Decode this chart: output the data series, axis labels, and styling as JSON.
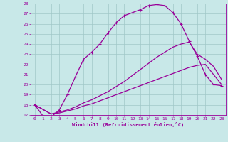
{
  "xlabel": "Windchill (Refroidissement éolien,°C)",
  "xlim": [
    -0.5,
    23.5
  ],
  "ylim": [
    17,
    28
  ],
  "xticks": [
    0,
    1,
    2,
    3,
    4,
    5,
    6,
    7,
    8,
    9,
    10,
    11,
    12,
    13,
    14,
    15,
    16,
    17,
    18,
    19,
    20,
    21,
    22,
    23
  ],
  "yticks": [
    17,
    18,
    19,
    20,
    21,
    22,
    23,
    24,
    25,
    26,
    27,
    28
  ],
  "bg_color": "#c8e8e8",
  "line_color": "#990099",
  "grid_color": "#a0c8c8",
  "line1_x": [
    0,
    1,
    2,
    3,
    4,
    5,
    6,
    7,
    8,
    9,
    10,
    11,
    12,
    13,
    14,
    15,
    16,
    17,
    18,
    19,
    20,
    21,
    22,
    23
  ],
  "line1_y": [
    18.0,
    16.9,
    16.8,
    17.5,
    19.0,
    20.8,
    22.5,
    23.2,
    24.0,
    25.1,
    26.1,
    26.8,
    27.1,
    27.4,
    27.8,
    27.9,
    27.8,
    27.1,
    26.0,
    24.3,
    22.8,
    21.0,
    20.0,
    19.9
  ],
  "line2_x": [
    0,
    2,
    3,
    4,
    5,
    6,
    7,
    8,
    9,
    10,
    11,
    12,
    13,
    14,
    15,
    16,
    17,
    18,
    19,
    20,
    21,
    22,
    23
  ],
  "line2_y": [
    18.0,
    17.1,
    17.3,
    17.5,
    17.8,
    18.2,
    18.5,
    18.9,
    19.3,
    19.8,
    20.3,
    20.9,
    21.5,
    22.1,
    22.7,
    23.2,
    23.7,
    24.0,
    24.2,
    23.0,
    22.5,
    21.8,
    20.5
  ],
  "line3_x": [
    0,
    2,
    3,
    4,
    5,
    6,
    7,
    8,
    9,
    10,
    11,
    12,
    13,
    14,
    15,
    16,
    17,
    18,
    19,
    20,
    21,
    22,
    23
  ],
  "line3_y": [
    18.0,
    17.1,
    17.2,
    17.4,
    17.6,
    17.9,
    18.1,
    18.4,
    18.7,
    19.0,
    19.3,
    19.6,
    19.9,
    20.2,
    20.5,
    20.8,
    21.1,
    21.4,
    21.7,
    21.9,
    22.0,
    21.0,
    20.0
  ]
}
